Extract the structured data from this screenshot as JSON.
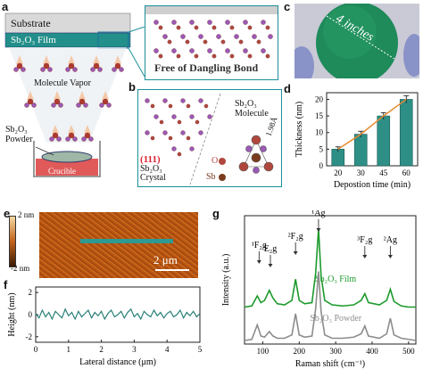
{
  "panels": {
    "a": {
      "label": "a",
      "substrate": "Substrate",
      "film": "Sb₂O₃ Film",
      "vapor": "Molecule Vapor",
      "powder_line1": "Sb₂O₃",
      "powder_line2": "Powder",
      "crucible": "Crucible",
      "zoom_caption": "Free of Dangling Bond"
    },
    "b": {
      "label": "b",
      "facet": "(111)",
      "crystal_line1": "Sb₂O₃",
      "crystal_line2": "Crystal",
      "molecule_line1": "Sb₂O₃",
      "molecule_line2": "Molecule",
      "bond": "1.98Å",
      "legend_o": "O",
      "legend_sb": "Sb"
    },
    "c": {
      "label": "c",
      "annotation": "4 inches",
      "colors": {
        "wafer": "#1f8a5a",
        "glove": "#8a93c8",
        "background": "#c9cad6"
      }
    },
    "d": {
      "label": "d"
    },
    "e": {
      "label": "e",
      "scale_top": "2 nm",
      "scale_bottom": "-2 nm",
      "scalebar": "2 μm",
      "colors": {
        "afm": "#c2611a",
        "line": "#2e9a93"
      }
    },
    "f": {
      "label": "f"
    },
    "g": {
      "label": "g"
    }
  },
  "chart_data": [
    {
      "id": "d",
      "type": "bar",
      "categories": [
        "20",
        "30",
        "45",
        "60"
      ],
      "values": [
        5.0,
        9.5,
        15.0,
        20.0
      ],
      "errors": [
        0.7,
        0.9,
        1.0,
        1.1
      ],
      "trend_line": [
        5.0,
        9.5,
        15.0,
        20.0
      ],
      "xlabel": "Depostion time (min)",
      "ylabel": "Thickness (nm)",
      "yticks": [
        "0",
        "5",
        "10",
        "15",
        "20"
      ],
      "ylim": [
        0,
        22
      ],
      "colors": {
        "bar": "#2e8f86",
        "trend": "#e8892f"
      }
    },
    {
      "id": "f",
      "type": "line",
      "xlabel": "Lateral distance (μm)",
      "ylabel": "Height (nm)",
      "xticks": [
        "0",
        "1",
        "2",
        "3",
        "4",
        "5"
      ],
      "yticks": [
        "-2",
        "0",
        "2"
      ],
      "xlim": [
        0,
        5
      ],
      "ylim": [
        -2.5,
        2.5
      ],
      "x": [
        0,
        0.1,
        0.2,
        0.3,
        0.4,
        0.5,
        0.6,
        0.7,
        0.8,
        0.9,
        1.0,
        1.1,
        1.2,
        1.3,
        1.4,
        1.5,
        1.6,
        1.7,
        1.8,
        1.9,
        2.0,
        2.1,
        2.2,
        2.3,
        2.4,
        2.5,
        2.6,
        2.7,
        2.8,
        2.9,
        3.0,
        3.1,
        3.2,
        3.3,
        3.4,
        3.5,
        3.6,
        3.7,
        3.8,
        3.9,
        4.0,
        4.1,
        4.2,
        4.3,
        4.4,
        4.5,
        4.6,
        4.7,
        4.8,
        4.9,
        5.0
      ],
      "y": [
        0.1,
        -0.3,
        0.4,
        -0.2,
        0.2,
        -0.4,
        0.3,
        0.0,
        -0.3,
        0.5,
        -0.1,
        0.2,
        -0.4,
        0.3,
        -0.2,
        0.1,
        0.4,
        -0.3,
        0.2,
        -0.1,
        0.3,
        -0.4,
        0.1,
        0.4,
        -0.2,
        0.0,
        0.3,
        -0.3,
        0.2,
        0.5,
        -0.2,
        0.1,
        -0.4,
        0.3,
        0.0,
        -0.2,
        0.4,
        -0.1,
        0.2,
        -0.3,
        0.1,
        0.3,
        -0.2,
        0.0,
        0.4,
        -0.3,
        0.2,
        -0.1,
        0.3,
        -0.2,
        0.1
      ],
      "colors": {
        "line": "#2a7f78"
      }
    },
    {
      "id": "g",
      "type": "line",
      "xlabel": "Raman shift (cm⁻¹)",
      "ylabel": "Intensity (a.u.)",
      "xticks": [
        "100",
        "200",
        "300",
        "400",
        "500"
      ],
      "xlim": [
        50,
        520
      ],
      "series": [
        {
          "name": "Sb₂O₃ Film",
          "x": [
            50,
            70,
            85,
            95,
            105,
            118,
            128,
            140,
            160,
            180,
            190,
            200,
            215,
            235,
            245,
            253,
            260,
            270,
            290,
            320,
            350,
            370,
            380,
            390,
            420,
            440,
            450,
            460,
            480,
            500,
            520
          ],
          "y": [
            0.3,
            0.31,
            0.4,
            0.34,
            0.36,
            0.45,
            0.38,
            0.33,
            0.32,
            0.36,
            0.55,
            0.36,
            0.33,
            0.34,
            0.6,
            1.0,
            0.58,
            0.36,
            0.32,
            0.31,
            0.32,
            0.36,
            0.42,
            0.34,
            0.32,
            0.36,
            0.46,
            0.35,
            0.31,
            0.3,
            0.3
          ]
        },
        {
          "name": "Sb₂O₃ Powder",
          "x": [
            50,
            70,
            85,
            95,
            105,
            118,
            128,
            140,
            160,
            180,
            190,
            200,
            215,
            235,
            245,
            253,
            260,
            270,
            290,
            320,
            350,
            370,
            380,
            390,
            420,
            440,
            450,
            460,
            480,
            500,
            520
          ],
          "y": [
            0.0,
            0.01,
            0.14,
            0.04,
            0.03,
            0.08,
            0.04,
            0.02,
            0.02,
            0.05,
            0.24,
            0.05,
            0.03,
            0.04,
            0.28,
            0.62,
            0.26,
            0.05,
            0.02,
            0.02,
            0.03,
            0.06,
            0.13,
            0.04,
            0.02,
            0.06,
            0.2,
            0.05,
            0.02,
            0.01,
            0.0
          ]
        }
      ],
      "peak_labels": [
        {
          "text": "¹F₂g",
          "x": 90
        },
        {
          "text": "E₂g",
          "x": 121
        },
        {
          "text": "²F₂g",
          "x": 190
        },
        {
          "text": "¹Ag",
          "x": 253
        },
        {
          "text": "³F₂g",
          "x": 380
        },
        {
          "text": "²Ag",
          "x": 450
        }
      ],
      "colors": {
        "film": "#1c9a2c",
        "powder": "#8c8c8c",
        "arrow": "#333333"
      }
    }
  ]
}
